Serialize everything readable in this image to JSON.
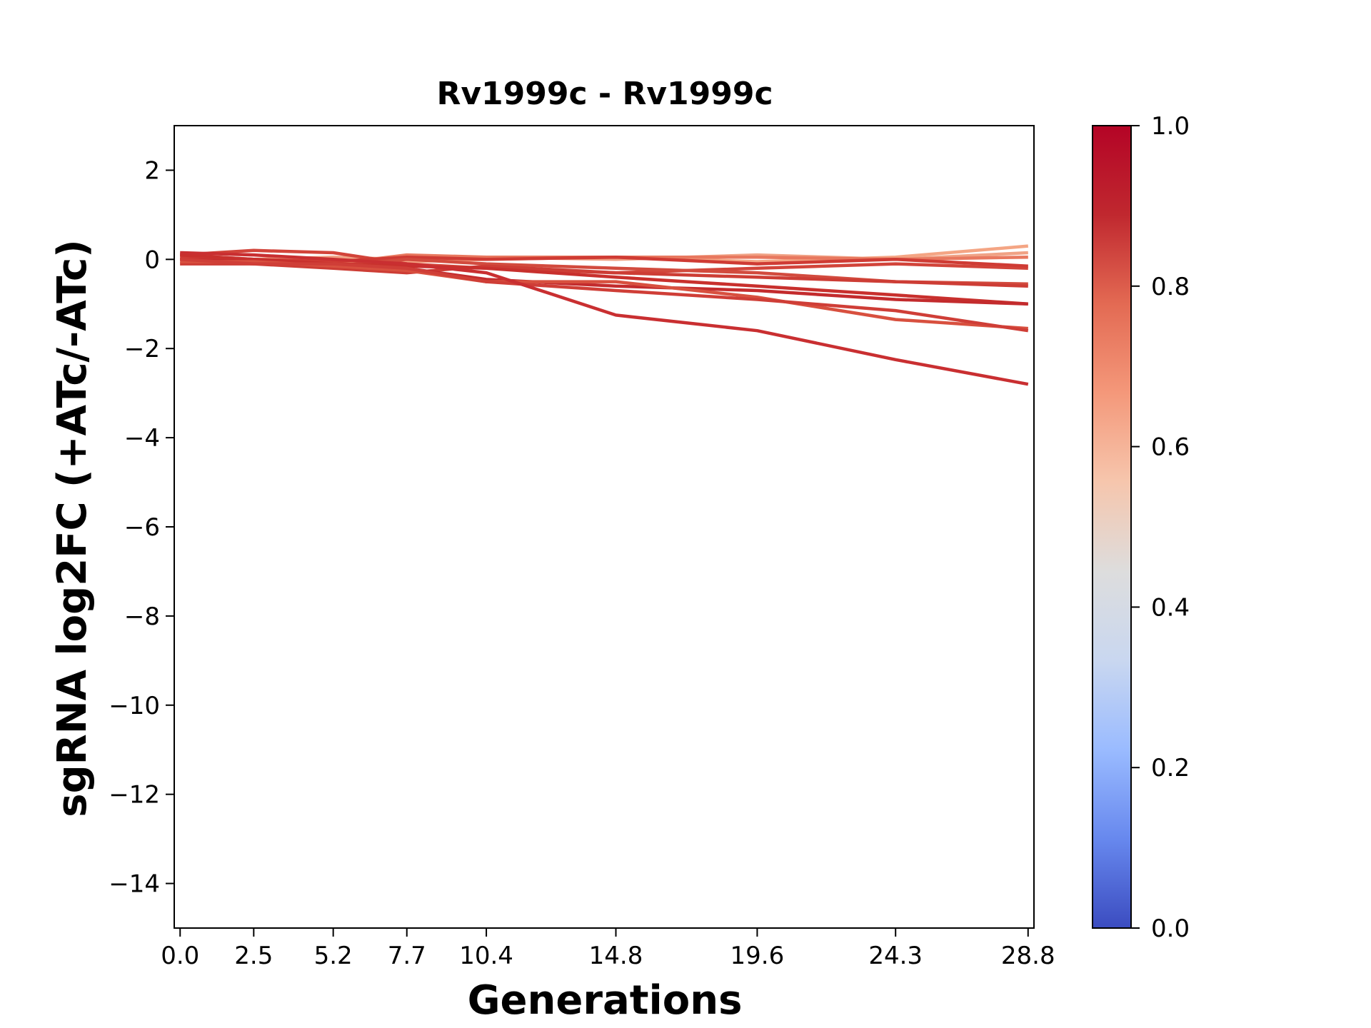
{
  "chart_data": {
    "type": "line",
    "title": "Rv1999c - Rv1999c",
    "xlabel": "Generations",
    "ylabel": "sgRNA log2FC (+ATc/-ATc)",
    "x": [
      0.0,
      2.5,
      5.2,
      7.7,
      10.4,
      14.8,
      19.6,
      24.3,
      28.8
    ],
    "x_tick_labels": [
      "0.0",
      "2.5",
      "5.2",
      "7.7",
      "10.4",
      "14.8",
      "19.6",
      "24.3",
      "28.8"
    ],
    "xlim": [
      -0.2,
      29.0
    ],
    "ylim": [
      -15,
      3
    ],
    "y_ticks": [
      2,
      0,
      -2,
      -4,
      -6,
      -8,
      -10,
      -12,
      -14
    ],
    "y_tick_labels": [
      "2",
      "0",
      "−2",
      "−4",
      "−6",
      "−8",
      "−10",
      "−12",
      "−14"
    ],
    "colorbar": {
      "colormap": "coolwarm",
      "range": [
        0.0,
        1.0
      ],
      "ticks": [
        1.0,
        0.8,
        0.6,
        0.4,
        0.2,
        0.0
      ],
      "tick_labels": [
        "1.0",
        "0.8",
        "0.6",
        "0.4",
        "0.2",
        "0.0"
      ],
      "stops": [
        "#3b4cc0",
        "#6788ee",
        "#9abbff",
        "#c9d7f0",
        "#dddddd",
        "#f6c6ad",
        "#f4987a",
        "#e36a53",
        "#c0282f",
        "#b40426"
      ]
    },
    "grid": false,
    "legend": "none",
    "series": [
      {
        "values": [
          0.0,
          -0.1,
          -0.1,
          -0.05,
          0.0,
          0.05,
          -0.05,
          0.05,
          0.3
        ],
        "color": "#f4a584"
      },
      {
        "values": [
          -0.1,
          0.0,
          0.05,
          0.0,
          0.05,
          0.0,
          0.1,
          0.0,
          0.15
        ],
        "color": "#f0a285"
      },
      {
        "values": [
          0.1,
          0.0,
          -0.1,
          0.1,
          0.05,
          0.05,
          0.05,
          0.0,
          0.05
        ],
        "color": "#e8785f"
      },
      {
        "values": [
          0.1,
          0.2,
          0.15,
          -0.1,
          -0.2,
          -0.3,
          -0.2,
          -0.1,
          -0.2
        ],
        "color": "#d2443a"
      },
      {
        "values": [
          0.05,
          0.0,
          -0.05,
          0.05,
          0.0,
          0.05,
          -0.1,
          0.0,
          -0.15
        ],
        "color": "#cf3b34"
      },
      {
        "values": [
          0.0,
          -0.05,
          -0.15,
          0.0,
          -0.1,
          -0.2,
          -0.3,
          -0.5,
          -0.55
        ],
        "color": "#d24b3e"
      },
      {
        "values": [
          -0.1,
          -0.1,
          -0.2,
          -0.3,
          -0.15,
          -0.3,
          -0.4,
          -0.5,
          -0.6
        ],
        "color": "#cd3d35"
      },
      {
        "values": [
          0.1,
          0.0,
          -0.1,
          -0.15,
          -0.2,
          -0.4,
          -0.6,
          -0.8,
          -1.0
        ],
        "color": "#c8302d"
      },
      {
        "values": [
          0.0,
          -0.05,
          -0.15,
          -0.2,
          -0.45,
          -0.6,
          -0.7,
          -0.9,
          -1.0
        ],
        "color": "#c32b2d"
      },
      {
        "values": [
          -0.05,
          -0.05,
          -0.15,
          -0.25,
          -0.5,
          -0.5,
          -0.85,
          -1.35,
          -1.55
        ],
        "color": "#d8503f"
      },
      {
        "values": [
          0.0,
          -0.1,
          -0.1,
          -0.2,
          -0.5,
          -0.7,
          -0.9,
          -1.15,
          -1.6
        ],
        "color": "#cf3e37"
      },
      {
        "values": [
          0.15,
          0.1,
          0.0,
          -0.1,
          -0.3,
          -1.25,
          -1.6,
          -2.25,
          -2.8
        ],
        "color": "#c92f31"
      }
    ]
  }
}
